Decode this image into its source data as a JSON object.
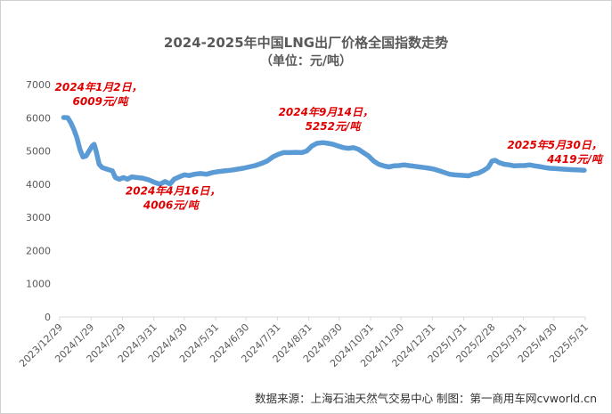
{
  "title": "2024-2025年中国LNG出厂价格全国指数走势",
  "subtitle": "（单位：元/吨）",
  "footer": "数据来源：上海石油天然气交易中心 制图：第一商用车网cvworld.cn",
  "colors": {
    "line": "#5b9bd5",
    "annotation": "#e00000",
    "axis": "#d9d9d9",
    "text": "#595959"
  },
  "chart_data": {
    "type": "line",
    "title": "2024-2025年中国LNG出厂价格全国指数走势",
    "subtitle": "（单位：元/吨）",
    "ylim": [
      0,
      7000
    ],
    "yticks": [
      0,
      1000,
      2000,
      3000,
      4000,
      5000,
      6000,
      7000
    ],
    "xlim": [
      "2023-12-29",
      "2025-05-31"
    ],
    "xticks": [
      "2023/12/29",
      "2024/1/29",
      "2024/2/29",
      "2024/3/31",
      "2024/4/30",
      "2024/5/31",
      "2024/6/30",
      "2024/7/31",
      "2024/8/31",
      "2024/9/30",
      "2024/10/31",
      "2024/11/30",
      "2024/12/31",
      "2025/1/31",
      "2025/2/28",
      "2025/3/31",
      "2025/4/30",
      "2025/5/31"
    ],
    "grid": false,
    "series": [
      {
        "points": [
          [
            "2024-01-02",
            6009
          ],
          [
            "2024-01-06",
            6000
          ],
          [
            "2024-01-09",
            5850
          ],
          [
            "2024-01-12",
            5650
          ],
          [
            "2024-01-15",
            5400
          ],
          [
            "2024-01-18",
            5050
          ],
          [
            "2024-01-21",
            4820
          ],
          [
            "2024-01-24",
            4850
          ],
          [
            "2024-01-27",
            5000
          ],
          [
            "2024-01-30",
            5150
          ],
          [
            "2024-02-01",
            5200
          ],
          [
            "2024-02-03",
            5000
          ],
          [
            "2024-02-06",
            4600
          ],
          [
            "2024-02-09",
            4500
          ],
          [
            "2024-02-14",
            4450
          ],
          [
            "2024-02-19",
            4400
          ],
          [
            "2024-02-22",
            4200
          ],
          [
            "2024-02-26",
            4150
          ],
          [
            "2024-03-01",
            4200
          ],
          [
            "2024-03-05",
            4150
          ],
          [
            "2024-03-09",
            4220
          ],
          [
            "2024-03-14",
            4200
          ],
          [
            "2024-03-20",
            4180
          ],
          [
            "2024-03-26",
            4130
          ],
          [
            "2024-04-01",
            4050
          ],
          [
            "2024-04-06",
            4000
          ],
          [
            "2024-04-11",
            4080
          ],
          [
            "2024-04-16",
            4006
          ],
          [
            "2024-04-20",
            4150
          ],
          [
            "2024-04-25",
            4220
          ],
          [
            "2024-04-30",
            4280
          ],
          [
            "2024-05-05",
            4260
          ],
          [
            "2024-05-10",
            4300
          ],
          [
            "2024-05-16",
            4320
          ],
          [
            "2024-05-22",
            4300
          ],
          [
            "2024-05-28",
            4350
          ],
          [
            "2024-06-03",
            4380
          ],
          [
            "2024-06-09",
            4400
          ],
          [
            "2024-06-15",
            4420
          ],
          [
            "2024-06-21",
            4450
          ],
          [
            "2024-06-27",
            4480
          ],
          [
            "2024-07-03",
            4520
          ],
          [
            "2024-07-09",
            4560
          ],
          [
            "2024-07-15",
            4620
          ],
          [
            "2024-07-21",
            4700
          ],
          [
            "2024-07-27",
            4830
          ],
          [
            "2024-08-01",
            4900
          ],
          [
            "2024-08-06",
            4950
          ],
          [
            "2024-08-12",
            4950
          ],
          [
            "2024-08-18",
            4960
          ],
          [
            "2024-08-24",
            4950
          ],
          [
            "2024-08-29",
            5000
          ],
          [
            "2024-09-03",
            5150
          ],
          [
            "2024-09-08",
            5230
          ],
          [
            "2024-09-14",
            5252
          ],
          [
            "2024-09-19",
            5230
          ],
          [
            "2024-09-24",
            5200
          ],
          [
            "2024-09-29",
            5150
          ],
          [
            "2024-10-04",
            5100
          ],
          [
            "2024-10-09",
            5080
          ],
          [
            "2024-10-14",
            5100
          ],
          [
            "2024-10-19",
            5050
          ],
          [
            "2024-10-24",
            4950
          ],
          [
            "2024-10-29",
            4850
          ],
          [
            "2024-11-03",
            4700
          ],
          [
            "2024-11-08",
            4600
          ],
          [
            "2024-11-13",
            4550
          ],
          [
            "2024-11-18",
            4520
          ],
          [
            "2024-11-23",
            4550
          ],
          [
            "2024-11-28",
            4560
          ],
          [
            "2024-12-03",
            4580
          ],
          [
            "2024-12-08",
            4560
          ],
          [
            "2024-12-13",
            4540
          ],
          [
            "2024-12-18",
            4520
          ],
          [
            "2024-12-23",
            4500
          ],
          [
            "2024-12-28",
            4480
          ],
          [
            "2025-01-02",
            4450
          ],
          [
            "2025-01-07",
            4400
          ],
          [
            "2025-01-12",
            4350
          ],
          [
            "2025-01-17",
            4300
          ],
          [
            "2025-01-22",
            4280
          ],
          [
            "2025-02-05",
            4250
          ],
          [
            "2025-02-09",
            4300
          ],
          [
            "2025-02-14",
            4330
          ],
          [
            "2025-02-19",
            4400
          ],
          [
            "2025-02-24",
            4500
          ],
          [
            "2025-02-28",
            4700
          ],
          [
            "2025-03-03",
            4720
          ],
          [
            "2025-03-07",
            4650
          ],
          [
            "2025-03-12",
            4600
          ],
          [
            "2025-03-17",
            4580
          ],
          [
            "2025-03-22",
            4550
          ],
          [
            "2025-03-27",
            4560
          ],
          [
            "2025-04-01",
            4560
          ],
          [
            "2025-04-06",
            4580
          ],
          [
            "2025-04-11",
            4550
          ],
          [
            "2025-04-16",
            4530
          ],
          [
            "2025-04-21",
            4500
          ],
          [
            "2025-04-26",
            4480
          ],
          [
            "2025-05-01",
            4470
          ],
          [
            "2025-05-06",
            4460
          ],
          [
            "2025-05-11",
            4450
          ],
          [
            "2025-05-16",
            4440
          ],
          [
            "2025-05-21",
            4430
          ],
          [
            "2025-05-26",
            4425
          ],
          [
            "2025-05-30",
            4419
          ]
        ]
      }
    ],
    "annotations": [
      {
        "date": "2024-01-02",
        "value": 6009,
        "line1": "2024年1月2日，",
        "line2": "6009元/吨"
      },
      {
        "date": "2024-04-16",
        "value": 4006,
        "line1": "2024年4月16日，",
        "line2": "4006元/吨"
      },
      {
        "date": "2024-09-14",
        "value": 5252,
        "line1": "2024年9月14日，",
        "line2": "5252元/吨"
      },
      {
        "date": "2025-05-30",
        "value": 4419,
        "line1": "2025年5月30日，",
        "line2": "4419元/吨"
      }
    ]
  }
}
